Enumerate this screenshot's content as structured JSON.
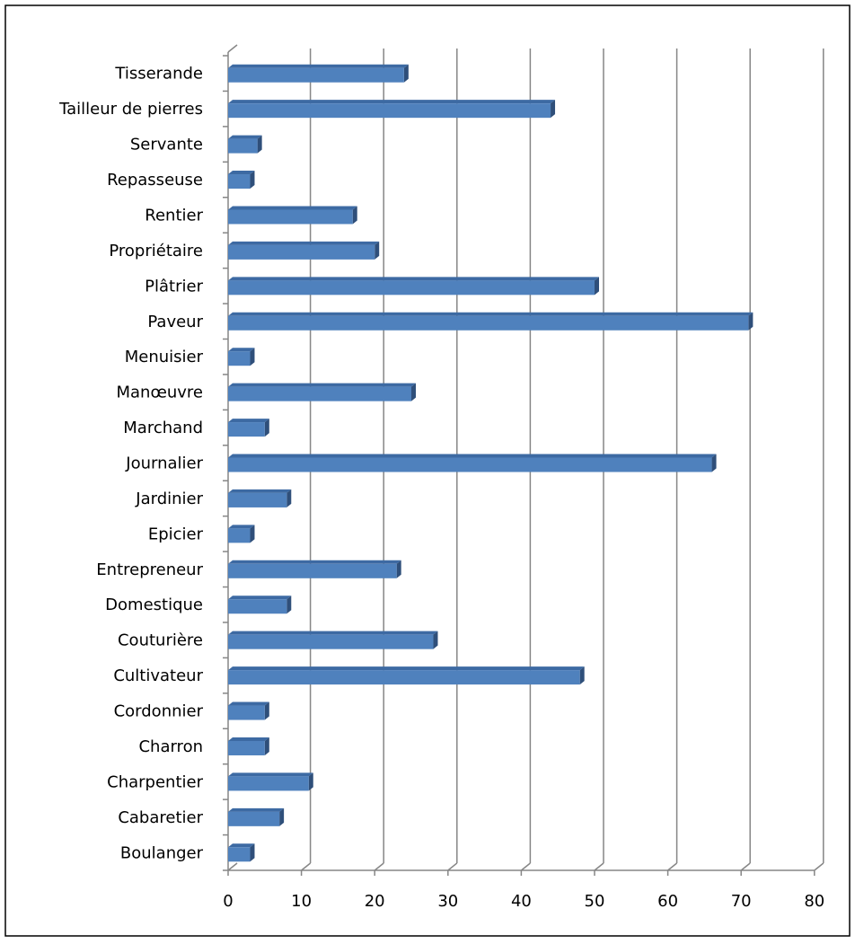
{
  "chart_data": {
    "type": "bar",
    "orientation": "horizontal",
    "style": "3d",
    "categories": [
      "Boulanger",
      "Cabaretier",
      "Charpentier",
      "Charron",
      "Cordonnier",
      "Cultivateur",
      "Couturière",
      "Domestique",
      "Entrepreneur",
      "Epicier",
      "Jardinier",
      "Journalier",
      "Marchand",
      "Manœuvre",
      "Menuisier",
      "Paveur",
      "Plâtrier",
      "Propriétaire",
      "Rentier",
      "Repasseuse",
      "Servante",
      "Tailleur de pierres",
      "Tisserande"
    ],
    "values": [
      3,
      7,
      11,
      5,
      5,
      48,
      28,
      8,
      23,
      3,
      8,
      66,
      5,
      25,
      3,
      71,
      50,
      20,
      17,
      3,
      4,
      44,
      24
    ],
    "xlim": [
      0,
      80
    ],
    "xticks": [
      "0",
      "10",
      "20",
      "30",
      "40",
      "50",
      "60",
      "70",
      "80"
    ],
    "title": "",
    "xlabel": "",
    "ylabel": "",
    "grid": true,
    "legend": "none",
    "colors": {
      "bar": "#4f81bd",
      "bar_side": "#2f4f7a",
      "bar_top": "#3d6aa3",
      "grid": "#868686"
    }
  }
}
